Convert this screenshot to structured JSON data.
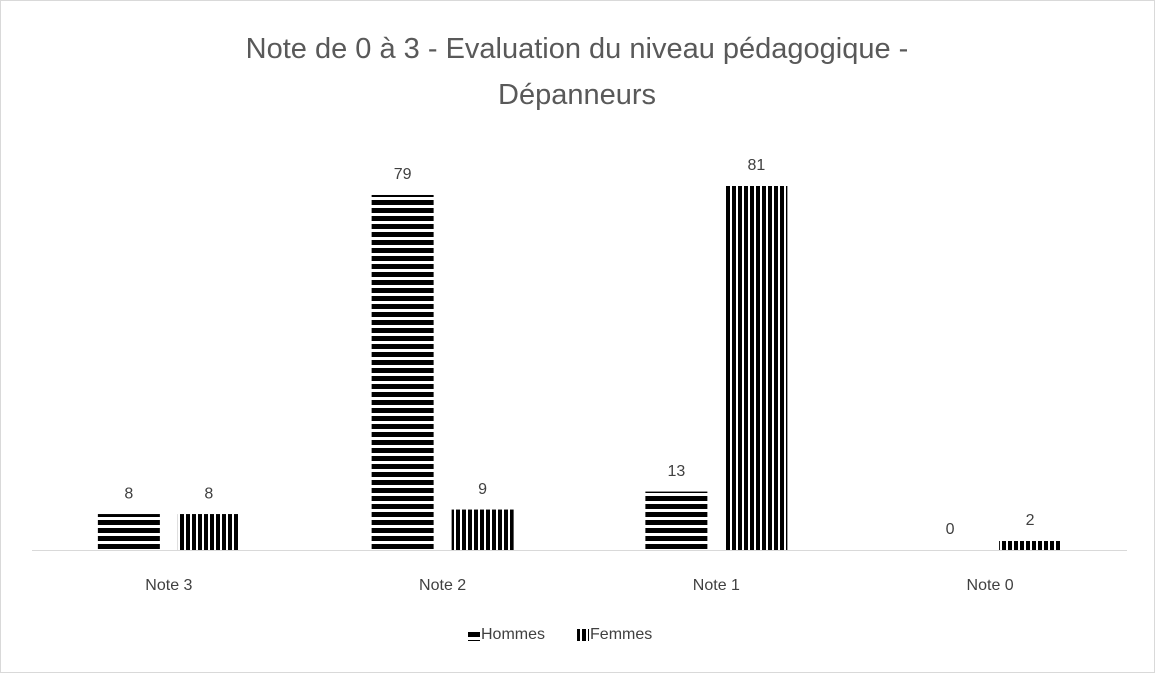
{
  "chart_data": {
    "type": "bar",
    "title": "Note de 0 à 3 - Evaluation du niveau pédagogique - Dépanneurs",
    "categories": [
      "Note 3",
      "Note 2",
      "Note 1",
      "Note 0"
    ],
    "series": [
      {
        "name": "Hommes",
        "color": "#FFC000",
        "pattern": "horizontal",
        "values": [
          8,
          79,
          13,
          0
        ]
      },
      {
        "name": "Femmes",
        "color": "#00B050",
        "pattern": "vertical",
        "values": [
          8,
          9,
          81,
          2
        ]
      }
    ],
    "legend": "bottom"
  }
}
